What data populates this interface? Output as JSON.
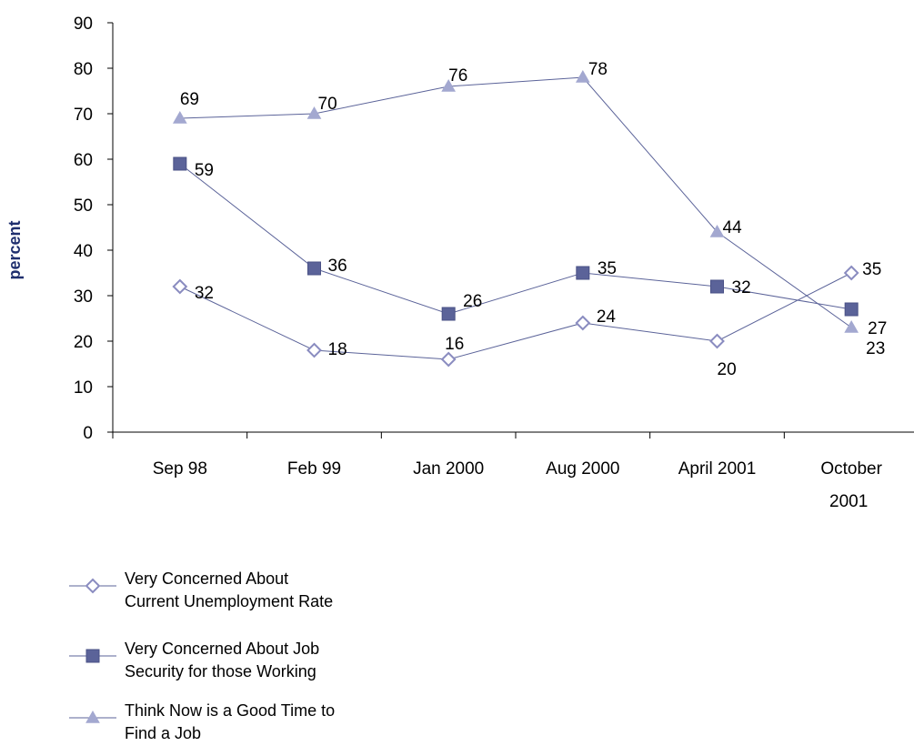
{
  "chart_data": {
    "type": "line",
    "ylabel": "percent",
    "ylim": [
      0,
      90
    ],
    "yticks": [
      "0",
      "10",
      "20",
      "30",
      "40",
      "50",
      "60",
      "70",
      "80",
      "90"
    ],
    "categories": [
      [
        "Sep 98"
      ],
      [
        "Feb 99"
      ],
      [
        "Jan 2000"
      ],
      [
        "Aug 2000"
      ],
      [
        "April 2001"
      ],
      [
        "October",
        "2001"
      ]
    ],
    "series": [
      {
        "name_lines": [
          "Very Concerned About",
          "Current Unemployment Rate"
        ],
        "marker": "diamond-open",
        "color": "#8a8cc0",
        "values": [
          32,
          18,
          16,
          24,
          20,
          35
        ]
      },
      {
        "name_lines": [
          "Very Concerned About Job",
          "Security for those Working"
        ],
        "marker": "square",
        "color": "#5b6399",
        "values": [
          59,
          36,
          26,
          35,
          32,
          27
        ]
      },
      {
        "name_lines": [
          "Think Now is a Good Time to",
          "Find a Job"
        ],
        "marker": "triangle",
        "color": "#a3a8d0",
        "values": [
          69,
          70,
          76,
          78,
          44,
          23
        ]
      }
    ],
    "legend_position": "bottom-left",
    "grid": false
  }
}
